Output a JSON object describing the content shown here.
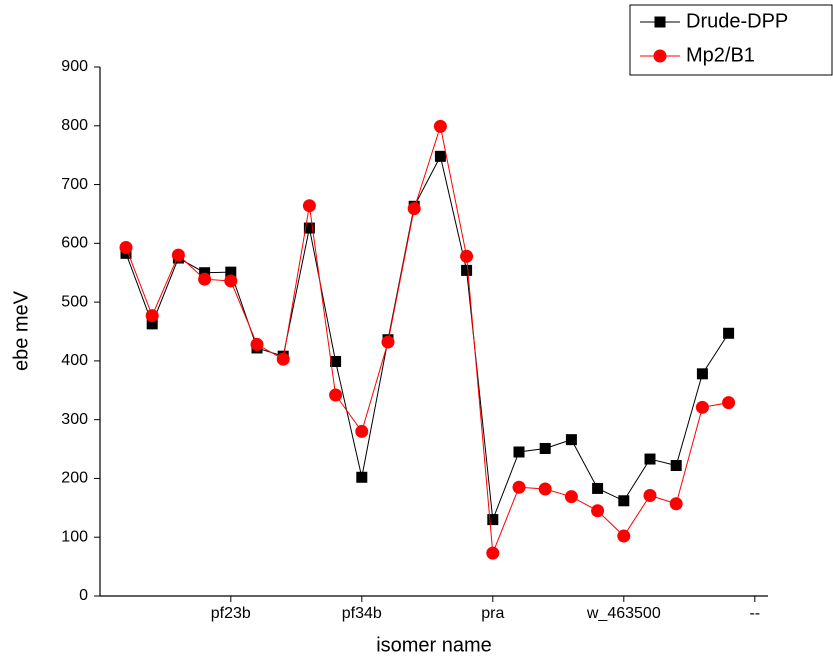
{
  "chart_data": {
    "type": "line",
    "x_label": "isomer name",
    "y_label": "ebe meV",
    "categories": [
      null,
      null,
      null,
      null,
      "pf23b",
      null,
      null,
      null,
      null,
      "pf34b",
      null,
      null,
      null,
      null,
      "pra",
      null,
      null,
      null,
      null,
      "w_463500",
      null,
      null,
      null,
      null,
      "--"
    ],
    "series": [
      {
        "name": "Drude-DPP",
        "color": "#000000",
        "marker": "square",
        "values": [
          583,
          463,
          575,
          550,
          551,
          422,
          408,
          626,
          399,
          202,
          436,
          663,
          748,
          554,
          130,
          245,
          251,
          266,
          183,
          162,
          233,
          222,
          378,
          447,
          null
        ]
      },
      {
        "name": "Mp2/B1",
        "color": "#ff0000",
        "marker": "circle",
        "values": [
          593,
          477,
          580,
          539,
          536,
          428,
          403,
          664,
          342,
          280,
          432,
          659,
          799,
          578,
          73,
          185,
          182,
          169,
          145,
          102,
          171,
          157,
          321,
          329,
          null
        ]
      }
    ],
    "ylim": [
      0,
      900
    ],
    "yticks": [
      0,
      100,
      200,
      300,
      400,
      500,
      600,
      700,
      800,
      900
    ],
    "legend": "top-right"
  }
}
